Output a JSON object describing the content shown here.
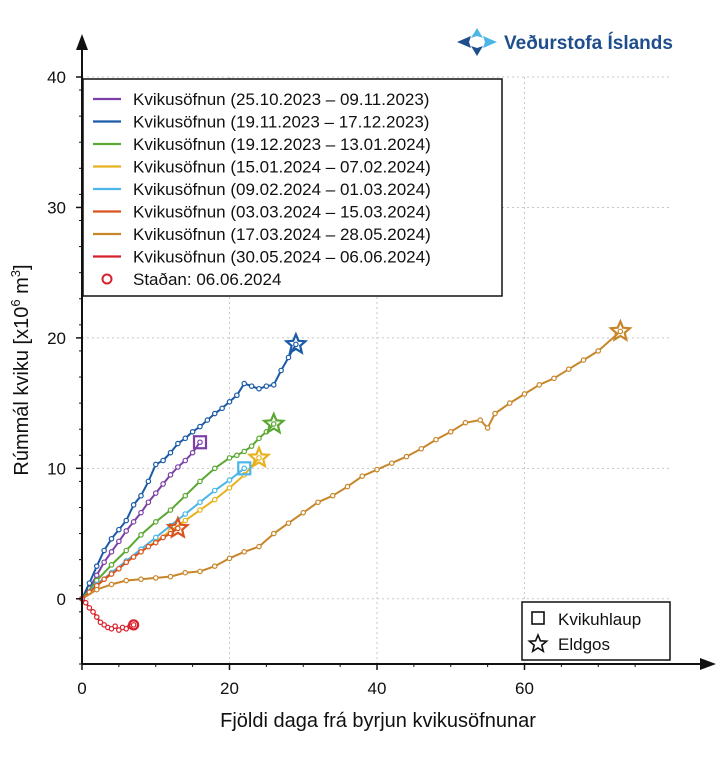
{
  "logo": {
    "text": "Veðurstofa Íslands",
    "color": "#1f4e8c"
  },
  "chart_data": {
    "type": "line",
    "xlabel": "Fjöldi daga frá byrjun kvikusöfnunar",
    "ylabel": "Rúmmál kviku [x10",
    "ylabel_sup": "6",
    "ylabel_unit": " m",
    "ylabel_unit_sup": "3",
    "ylabel_close": "]",
    "xlim": [
      0,
      80
    ],
    "ylim": [
      -5,
      40
    ],
    "xticks": [
      0,
      20,
      40,
      60
    ],
    "yticks": [
      0,
      10,
      20,
      30,
      40
    ],
    "grid": true,
    "legend_position": "top-left",
    "series": [
      {
        "name": "Kvikusöfnun (25.10.2023 – 09.11.2023)",
        "color": "#7b3fa6",
        "end_marker": "square",
        "x": [
          0,
          1,
          2,
          3,
          4,
          5,
          6,
          7,
          8,
          9,
          10,
          11,
          12,
          13,
          14,
          15,
          16
        ],
        "y": [
          0,
          0.8,
          1.8,
          2.8,
          3.6,
          4.4,
          5.2,
          5.9,
          6.6,
          7.4,
          8.1,
          8.8,
          9.5,
          10.1,
          10.6,
          11.2,
          12
        ]
      },
      {
        "name": "Kvikusöfnun (19.11.2023 – 17.12.2023)",
        "color": "#1b5aa6",
        "end_marker": "star",
        "x": [
          0,
          1,
          2,
          3,
          4,
          5,
          6,
          7,
          8,
          9,
          10,
          11,
          12,
          13,
          14,
          15,
          16,
          17,
          18,
          19,
          20,
          21,
          22,
          23,
          24,
          25,
          26,
          27,
          28,
          29
        ],
        "y": [
          0,
          1.2,
          2.5,
          3.7,
          4.6,
          5.3,
          6.0,
          7.2,
          7.9,
          9.0,
          10.3,
          10.6,
          11.2,
          11.9,
          12.3,
          12.8,
          13.2,
          13.7,
          14.2,
          14.6,
          15.1,
          15.6,
          16.5,
          16.3,
          16.1,
          16.3,
          16.4,
          17.5,
          18.5,
          19.5
        ]
      },
      {
        "name": "Kvikusöfnun (19.12.2023 – 13.01.2024)",
        "color": "#5aa832",
        "end_marker": "star",
        "x": [
          0,
          2,
          4,
          6,
          8,
          10,
          12,
          14,
          16,
          18,
          20,
          21,
          22,
          23,
          24,
          25,
          26
        ],
        "y": [
          0,
          1.4,
          2.6,
          3.7,
          4.9,
          5.9,
          6.8,
          7.9,
          9.0,
          10.0,
          10.8,
          11.0,
          11.3,
          11.7,
          12.3,
          12.8,
          13.4
        ]
      },
      {
        "name": "Kvikusöfnun (15.01.2024 – 07.02.2024)",
        "color": "#e8b21e",
        "end_marker": "star",
        "x": [
          0,
          2,
          4,
          6,
          8,
          10,
          12,
          14,
          16,
          18,
          20,
          22,
          24
        ],
        "y": [
          0,
          1.0,
          1.9,
          2.8,
          3.6,
          4.4,
          5.2,
          6.0,
          6.8,
          7.6,
          8.5,
          9.5,
          10.8
        ]
      },
      {
        "name": "Kvikusöfnun (09.02.2024 – 01.03.2024)",
        "color": "#4bb6e8",
        "end_marker": "square",
        "x": [
          0,
          2,
          4,
          6,
          8,
          10,
          12,
          14,
          16,
          18,
          20,
          22
        ],
        "y": [
          0,
          1.1,
          2.0,
          2.9,
          3.8,
          4.7,
          5.6,
          6.5,
          7.4,
          8.3,
          9.1,
          10.0
        ]
      },
      {
        "name": "Kvikusöfnun (03.03.2024 – 15.03.2024)",
        "color": "#d9531e",
        "end_marker": "star",
        "x": [
          0,
          1,
          2,
          3,
          4,
          5,
          6,
          7,
          8,
          9,
          10,
          11,
          12,
          13
        ],
        "y": [
          0,
          0.5,
          1.0,
          1.5,
          1.9,
          2.3,
          2.8,
          3.2,
          3.6,
          4.0,
          4.3,
          4.7,
          5.0,
          5.4
        ]
      },
      {
        "name": "Kvikusöfnun (17.03.2024 – 28.05.2024)",
        "color": "#c8862a",
        "end_marker": "star",
        "x": [
          0,
          2,
          4,
          6,
          8,
          10,
          12,
          14,
          16,
          18,
          20,
          22,
          24,
          26,
          28,
          30,
          32,
          34,
          36,
          38,
          40,
          42,
          44,
          46,
          48,
          50,
          52,
          54,
          55,
          56,
          58,
          60,
          62,
          64,
          66,
          68,
          70,
          73
        ],
        "y": [
          0,
          0.7,
          1.1,
          1.4,
          1.5,
          1.6,
          1.7,
          2.0,
          2.1,
          2.5,
          3.1,
          3.6,
          4.0,
          5.0,
          5.8,
          6.6,
          7.4,
          7.9,
          8.6,
          9.4,
          9.9,
          10.4,
          10.9,
          11.5,
          12.2,
          12.8,
          13.5,
          13.7,
          13.1,
          14.2,
          15.0,
          15.7,
          16.4,
          16.9,
          17.6,
          18.3,
          19.0,
          20.5
        ]
      },
      {
        "name": "Kvikusöfnun (30.05.2024 – 06.06.2024)",
        "color": "#d7212b",
        "end_marker": "circle",
        "x": [
          0,
          0.5,
          1,
          1.5,
          2,
          2.5,
          3,
          3.5,
          4,
          4.5,
          5,
          5.5,
          6,
          6.5,
          7
        ],
        "y": [
          0,
          -0.3,
          -0.7,
          -1.0,
          -1.4,
          -1.8,
          -2.0,
          -2.2,
          -2.3,
          -2.1,
          -2.4,
          -2.2,
          -2.3,
          -2.1,
          -2.0
        ]
      }
    ],
    "current_label": "Staðan: 06.06.2024",
    "current_color": "#d7212b",
    "symbol_legend": [
      {
        "symbol": "square",
        "label": "Kvikuhlaup"
      },
      {
        "symbol": "star",
        "label": "Eldgos"
      }
    ]
  }
}
